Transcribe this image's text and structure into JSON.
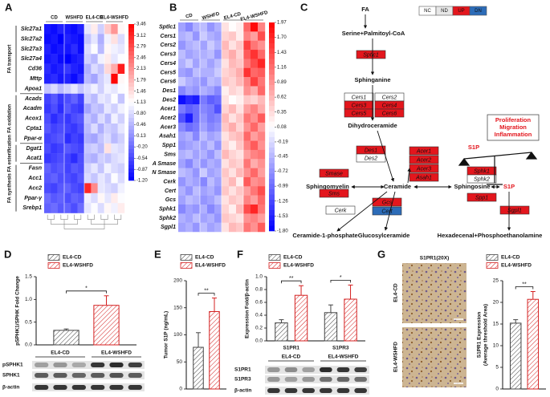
{
  "chart_data": [
    {
      "type": "heatmap",
      "panel": "A",
      "groups": [
        "CD",
        "WSHFD",
        "EL4-CD",
        "EL4-WSHFD"
      ],
      "row_groups": [
        {
          "name": "FA transport",
          "rows": [
            "Slc27a1",
            "Slc27a2",
            "Slc27a3",
            "Slc27a4",
            "Cd36",
            "Mttp",
            "Apoa1"
          ],
          "values": [
            [
              -1.0,
              -1.1,
              -0.9,
              -1.0,
              -1.1,
              -0.9,
              0.9,
              1.3,
              0.7,
              1.6,
              2.1,
              1.2
            ],
            [
              -1.1,
              -1.0,
              -1.2,
              -0.9,
              -1.0,
              -1.1,
              0.6,
              0.9,
              0.4,
              1.0,
              1.4,
              0.8
            ],
            [
              -0.9,
              -1.1,
              -1.0,
              -1.0,
              -0.8,
              -1.1,
              0.8,
              1.1,
              0.5,
              1.2,
              1.0,
              0.9
            ],
            [
              -1.0,
              -0.9,
              -1.1,
              -1.2,
              -1.0,
              -0.9,
              0.7,
              0.5,
              1.0,
              1.3,
              0.9,
              1.1
            ],
            [
              -0.8,
              -1.0,
              -0.9,
              -0.7,
              -0.9,
              -1.0,
              0.4,
              0.8,
              0.6,
              1.5,
              1.9,
              3.2
            ],
            [
              -0.9,
              -0.8,
              -1.0,
              -0.9,
              -1.1,
              -0.8,
              0.5,
              0.3,
              0.7,
              0.9,
              3.4,
              1.2
            ],
            [
              0.6,
              0.8,
              0.5,
              0.7,
              0.9,
              0.6,
              0.8,
              1.0,
              0.7,
              1.0,
              0.9,
              1.1
            ]
          ]
        },
        {
          "name": "FA oxidation",
          "rows": [
            "Acads",
            "Acadm",
            "Acox1",
            "Cpta1",
            "Ppar-α"
          ],
          "values": [
            [
              -0.6,
              -0.4,
              -0.7,
              -0.5,
              -0.3,
              -0.6,
              0.7,
              0.5,
              0.9,
              0.8,
              1.1,
              0.6
            ],
            [
              -0.7,
              -0.5,
              -0.8,
              -0.4,
              -0.6,
              -0.7,
              0.3,
              0.6,
              0.5,
              0.9,
              0.7,
              1.0
            ],
            [
              -0.5,
              -0.8,
              -0.6,
              -0.7,
              -0.5,
              -0.4,
              0.6,
              0.4,
              0.8,
              0.5,
              1.0,
              0.7
            ],
            [
              -0.4,
              -0.6,
              -0.5,
              -0.6,
              -0.7,
              -0.5,
              0.5,
              0.8,
              0.4,
              0.7,
              0.6,
              0.9
            ],
            [
              -0.6,
              -0.5,
              -0.4,
              -0.8,
              -0.6,
              -0.7,
              0.4,
              0.3,
              0.6,
              0.8,
              0.5,
              0.7
            ]
          ]
        },
        {
          "name": "FA esterification",
          "rows": [
            "Dgat1",
            "Acat1"
          ],
          "values": [
            [
              -0.5,
              -0.7,
              -0.6,
              -0.4,
              -0.5,
              -0.6,
              0.6,
              0.7,
              0.5,
              1.4,
              0.9,
              0.8
            ],
            [
              -0.7,
              -0.6,
              -0.5,
              -0.6,
              -0.8,
              -0.5,
              0.5,
              0.4,
              0.7,
              0.6,
              0.8,
              0.9
            ]
          ]
        },
        {
          "name": "FA synthesis",
          "rows": [
            "Fasn",
            "Acc1",
            "Acc2",
            "Ppar-γ",
            "Srebp1"
          ],
          "values": [
            [
              -0.3,
              -0.5,
              -0.4,
              -0.6,
              -0.4,
              -0.5,
              0.7,
              0.9,
              0.6,
              1.0,
              0.8,
              0.7
            ],
            [
              -0.4,
              -0.3,
              -0.5,
              -0.5,
              -0.6,
              -0.4,
              0.8,
              0.6,
              0.9,
              0.7,
              1.1,
              0.8
            ],
            [
              -0.5,
              -0.6,
              -0.4,
              -0.3,
              -0.5,
              -0.6,
              3.1,
              2.2,
              0.9,
              0.8,
              0.7,
              1.0
            ],
            [
              -0.2,
              -0.4,
              -0.3,
              -0.5,
              -0.3,
              -0.4,
              1.0,
              0.8,
              1.2,
              0.9,
              1.3,
              1.1
            ],
            [
              -0.3,
              -0.2,
              -0.4,
              -0.3,
              -0.5,
              -0.2,
              0.9,
              1.1,
              0.8,
              1.2,
              1.0,
              1.3
            ]
          ]
        }
      ],
      "clim": [
        -1.2,
        3.46
      ],
      "cticks": [
        3.46,
        3.12,
        2.79,
        2.46,
        2.13,
        1.79,
        1.46,
        1.13,
        {
          "value": 0.8,
          "label": "0.80"
        },
        0.46,
        0.13,
        {
          "value": -0.2,
          "label": "-0.20"
        },
        -0.54,
        -0.87,
        {
          "value": -1.2,
          "label": "-1.20"
        }
      ],
      "colors": [
        "#0000ff",
        "#ffffff",
        "#ff0000"
      ]
    },
    {
      "type": "heatmap",
      "panel": "B",
      "groups": [
        "CD",
        "WSHFD",
        "EL4-CD",
        "EL4-WSHFD"
      ],
      "rows": [
        "Sptlc1",
        "Cers1",
        "Cers2",
        "Cers3",
        "Cers4",
        "Cers5",
        "Cers6",
        "Des1",
        "Des2",
        "Acer1",
        "Acer2",
        "Acer3",
        "Asah1",
        "Spp1",
        "Sms",
        "A Smase",
        "N Smase",
        "Cerk",
        "Cert",
        "Gcs",
        "Sphk1",
        "Sphk2",
        "Sgpl1"
      ],
      "values": [
        [
          -0.6,
          -0.8,
          -0.5,
          -0.4,
          -0.7,
          -0.5,
          0.3,
          0.1,
          0.2,
          1.2,
          1.9,
          1.0
        ],
        [
          -0.5,
          -0.4,
          -0.7,
          -0.3,
          -0.5,
          -0.6,
          0.4,
          0.5,
          0.2,
          1.0,
          0.8,
          1.4
        ],
        [
          -0.7,
          -0.5,
          -0.4,
          -0.6,
          -0.3,
          -0.5,
          0.6,
          0.3,
          0.5,
          1.5,
          1.1,
          0.9
        ],
        [
          -0.4,
          -0.6,
          -0.5,
          -0.5,
          -0.4,
          -0.7,
          0.5,
          0.7,
          0.4,
          1.3,
          1.6,
          1.2
        ],
        [
          -0.5,
          -0.3,
          -0.6,
          -0.4,
          -0.6,
          -0.4,
          0.3,
          0.6,
          0.5,
          1.1,
          1.4,
          1.7
        ],
        [
          -0.6,
          -0.7,
          -0.4,
          -0.5,
          -0.5,
          -0.3,
          0.4,
          0.5,
          0.7,
          1.6,
          1.2,
          1.3
        ],
        [
          -0.3,
          -0.5,
          -0.6,
          -0.7,
          -0.4,
          -0.5,
          0.5,
          0.4,
          0.6,
          1.0,
          1.5,
          1.1
        ],
        [
          -0.8,
          -0.6,
          -0.7,
          -0.5,
          -0.6,
          -0.8,
          0.2,
          0.4,
          0.3,
          0.9,
          0.7,
          1.2
        ],
        [
          -1.7,
          -1.5,
          -1.6,
          -0.9,
          -1.1,
          -1.0,
          0.3,
          0.1,
          0.2,
          0.5,
          0.4,
          0.6
        ],
        [
          -0.9,
          -1.1,
          -1.0,
          -0.8,
          -0.9,
          -1.2,
          0.4,
          0.6,
          0.3,
          0.8,
          1.0,
          0.7
        ],
        [
          -1.2,
          -1.6,
          -1.0,
          -0.7,
          -0.9,
          -0.8,
          0.6,
          0.3,
          0.5,
          1.1,
          0.9,
          1.3
        ],
        [
          -0.8,
          -1.0,
          -0.9,
          -0.6,
          -0.8,
          -0.7,
          0.5,
          0.7,
          0.4,
          0.9,
          1.2,
          0.8
        ],
        [
          -0.6,
          -0.5,
          -0.8,
          -0.4,
          -0.6,
          -0.5,
          0.3,
          0.5,
          0.6,
          1.2,
          0.8,
          1.0
        ],
        [
          -0.7,
          -0.6,
          -0.5,
          -0.6,
          -0.4,
          -0.7,
          0.4,
          0.2,
          0.5,
          1.0,
          1.3,
          0.9
        ],
        [
          -0.5,
          -0.4,
          -0.6,
          -0.5,
          -0.7,
          -0.4,
          0.6,
          0.4,
          0.3,
          0.8,
          1.0,
          1.1
        ],
        [
          -0.6,
          -0.8,
          -0.5,
          -0.7,
          -0.5,
          -0.6,
          0.3,
          0.5,
          0.4,
          1.1,
          0.7,
          0.9
        ],
        [
          -0.4,
          -0.5,
          -0.7,
          -0.3,
          -0.6,
          -0.5,
          0.5,
          0.3,
          0.6,
          0.9,
          1.2,
          0.8
        ],
        [
          -0.7,
          -0.5,
          -0.6,
          -0.8,
          -0.4,
          -0.6,
          0.4,
          0.6,
          0.2,
          1.3,
          0.9,
          1.0
        ],
        [
          -0.5,
          -0.7,
          -0.4,
          -0.6,
          -0.5,
          -0.7,
          0.5,
          0.3,
          0.5,
          0.8,
          1.1,
          1.4
        ],
        [
          -0.6,
          -0.4,
          -0.5,
          -0.7,
          -0.6,
          -0.4,
          0.3,
          0.5,
          0.4,
          1.0,
          0.8,
          1.2
        ],
        [
          -0.8,
          -0.6,
          -0.7,
          -0.5,
          -0.8,
          -0.6,
          0.4,
          0.2,
          0.6,
          1.4,
          1.7,
          1.1
        ],
        [
          -0.5,
          -0.6,
          -0.4,
          -0.6,
          -0.5,
          -0.7,
          0.5,
          0.4,
          0.3,
          0.9,
          1.0,
          0.8
        ],
        [
          -0.6,
          -0.5,
          -0.7,
          -0.4,
          -0.6,
          -0.5,
          0.3,
          0.6,
          0.5,
          1.1,
          0.9,
          1.3
        ]
      ],
      "clim": [
        -1.8,
        1.97
      ],
      "cticks": [
        1.97,
        {
          "value": 1.7,
          "label": "1.70"
        },
        1.43,
        1.16,
        0.89,
        0.62,
        0.35,
        0.08,
        -0.19,
        -0.45,
        -0.72,
        -0.99,
        -1.26,
        -1.53,
        {
          "value": -1.8,
          "label": "-1.80"
        }
      ],
      "colors": [
        "#0000ff",
        "#ffffff",
        "#ff0000"
      ]
    },
    {
      "type": "bar",
      "panel": "D",
      "ylabel": "pSPHK1/SPHK Fold Change",
      "categories": [
        null
      ],
      "series": [
        {
          "name": "EL4-CD",
          "color": "#444444",
          "values": [
            0.32
          ],
          "errors": [
            0.03
          ]
        },
        {
          "name": "EL4-WSHFD",
          "color": "#d42020",
          "values": [
            0.87
          ],
          "errors": [
            0.21
          ]
        }
      ],
      "ylim": [
        0,
        1.5
      ],
      "yticks": [
        {
          "value": 0,
          "label": "0.0"
        },
        {
          "value": 0.5,
          "label": "0.5"
        },
        {
          "value": 1,
          "label": "1.0"
        },
        {
          "value": 1.5,
          "label": "1.5"
        }
      ],
      "significance": [
        "*"
      ],
      "legend": "top"
    },
    {
      "type": "bar",
      "panel": "E",
      "ylabel": "Tumor S1P (ng/mL)",
      "categories": [
        null
      ],
      "series": [
        {
          "name": "EL4-CD",
          "color": "#444444",
          "values": [
            77
          ],
          "errors": [
            27
          ]
        },
        {
          "name": "EL4-WSHFD",
          "color": "#d42020",
          "values": [
            143
          ],
          "errors": [
            25
          ]
        }
      ],
      "ylim": [
        0,
        200
      ],
      "yticks": [
        0,
        50,
        100,
        150,
        200
      ],
      "significance": [
        "**"
      ],
      "legend": "top"
    },
    {
      "type": "bar",
      "panel": "F",
      "ylabel": "Expression Fold/β-actin",
      "categories": [
        "S1PR1",
        "S1PR3"
      ],
      "series": [
        {
          "name": "EL4-CD",
          "color": "#444444",
          "values": [
            0.28,
            0.44
          ],
          "errors": [
            0.05,
            0.12
          ]
        },
        {
          "name": "EL4-WSHFD",
          "color": "#d42020",
          "values": [
            0.71,
            0.65
          ],
          "errors": [
            0.15,
            0.22
          ]
        }
      ],
      "ylim": [
        0,
        1
      ],
      "yticks": [
        {
          "value": 0,
          "label": "0.0"
        },
        0.2,
        0.4,
        0.6,
        0.8,
        {
          "value": 1,
          "label": "1.0"
        }
      ],
      "significance": [
        "**",
        "*"
      ],
      "legend": "top"
    },
    {
      "type": "bar",
      "panel": "G",
      "ylabel": [
        "S1PR1 Expression",
        "(Average threshold Area)"
      ],
      "categories": [
        null
      ],
      "series": [
        {
          "name": "EL4-CD",
          "color": "#444444",
          "values": [
            15.2
          ],
          "errors": [
            0.8
          ]
        },
        {
          "name": "EL4-WSHFD",
          "color": "#d42020",
          "values": [
            20.7
          ],
          "errors": [
            1.8
          ]
        }
      ],
      "ylim": [
        0,
        25
      ],
      "yticks": [
        0,
        5,
        10,
        15,
        20,
        25
      ],
      "significance": [
        "**"
      ],
      "legend": "top"
    }
  ],
  "diagram": {
    "panel": "C",
    "legend": [
      {
        "label": "NC",
        "color": "#ffffff"
      },
      {
        "label": "ND",
        "color": "#e6e6e6"
      },
      {
        "label": "UP",
        "color": "#e3161d"
      },
      {
        "label": "DN",
        "color": "#2c6cb8"
      }
    ],
    "metabolites": [
      "FA",
      "Serine+Palmitoyl-CoA",
      "Sphinganine",
      "Dihydroceramide",
      "Ceramide",
      "Sphingomyelin",
      "Sphingosine",
      "S1P",
      "Ceramide-1-phosphate",
      "Glucosylceramide",
      "Hexadecenal+Phosphoethanolamine"
    ],
    "balance_label": "S1P",
    "outcomes": [
      "Proliferation",
      "Migration",
      "Inflammation"
    ],
    "enzymes": [
      {
        "label": "Sptlc1",
        "status": "UP"
      },
      {
        "label": "Cers1",
        "status": "NC"
      },
      {
        "label": "Cers2",
        "status": "NC"
      },
      {
        "label": "Cers3",
        "status": "UP"
      },
      {
        "label": "Cers4",
        "status": "UP"
      },
      {
        "label": "Cers5",
        "status": "UP"
      },
      {
        "label": "Cers6",
        "status": "UP"
      },
      {
        "label": "Des1",
        "status": "UP"
      },
      {
        "label": "Des2",
        "status": "NC"
      },
      {
        "label": "Acer1",
        "status": "UP"
      },
      {
        "label": "Acer2",
        "status": "UP"
      },
      {
        "label": "Acer3",
        "status": "UP"
      },
      {
        "label": "Asah1",
        "status": "UP"
      },
      {
        "label": "Smase",
        "status": "UP"
      },
      {
        "label": "Sms",
        "status": "UP"
      },
      {
        "label": "Sphk1",
        "status": "UP"
      },
      {
        "label": "Sphk2",
        "status": "NC"
      },
      {
        "label": "Spp1",
        "status": "UP"
      },
      {
        "label": "Sgpl1",
        "status": "UP"
      },
      {
        "label": "Cerk",
        "status": "NC"
      },
      {
        "label": "Gcs",
        "status": "UP"
      },
      {
        "label": "Cert",
        "status": "DN"
      }
    ]
  },
  "blots": [
    {
      "groups": [
        "EL4-CD",
        "EL4-WSHFD"
      ],
      "rows": [
        "pSPHK1",
        "SPHK1",
        "β-actin"
      ]
    },
    {
      "groups": [
        "EL4-CD",
        "EL4-WSHFD"
      ],
      "rows": [
        "S1PR1",
        "S1PR3",
        "β-actin"
      ]
    }
  ],
  "micrographs": {
    "title": "S1PR1(20X)",
    "rows": [
      "EL4-CD",
      "EL4-WSHFD"
    ]
  }
}
